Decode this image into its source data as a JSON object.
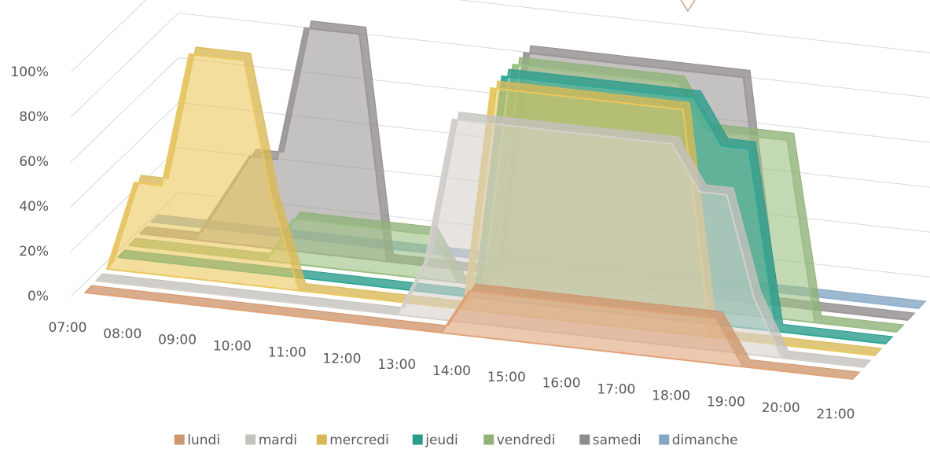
{
  "chart_data": {
    "type": "area3d",
    "categories": [
      "07:00",
      null,
      "08:00",
      null,
      "09:00",
      null,
      "10:00",
      null,
      "11:00",
      null,
      "12:00",
      null,
      "13:00",
      null,
      "14:00",
      null,
      "15:00",
      null,
      "16:00",
      null,
      "17:00",
      null,
      "18:00",
      null,
      "19:00",
      null,
      "20:00",
      null,
      "21:00"
    ],
    "ylim": [
      0,
      100
    ],
    "yticks": [
      {
        "value": 0,
        "label": "0%"
      },
      {
        "value": 20,
        "label": "20%"
      },
      {
        "value": 40,
        "label": "40%"
      },
      {
        "value": 60,
        "label": "60%"
      },
      {
        "value": 80,
        "label": "80%"
      },
      {
        "value": 100,
        "label": "100%"
      }
    ],
    "grid": true,
    "legend": "bottom",
    "series": [
      {
        "name": "lundi",
        "color": "#f4b183",
        "values": [
          0,
          0,
          0,
          0,
          0,
          0,
          0,
          0,
          0,
          0,
          0,
          0,
          0,
          0,
          20,
          20,
          20,
          20,
          20,
          20,
          20,
          20,
          20,
          20,
          0,
          0,
          0,
          0,
          0
        ]
      },
      {
        "name": "mardi",
        "color": "#e7e3df",
        "values": [
          0,
          0,
          0,
          0,
          0,
          0,
          0,
          0,
          0,
          0,
          0,
          0,
          25,
          90,
          90,
          90,
          90,
          90,
          90,
          90,
          90,
          90,
          70,
          70,
          25,
          0,
          0,
          0,
          0
        ]
      },
      {
        "name": "mercredi",
        "color": "#ffd966",
        "values": [
          0,
          40,
          40,
          100,
          100,
          100,
          40,
          0,
          0,
          0,
          0,
          0,
          0,
          0,
          100,
          100,
          100,
          100,
          100,
          100,
          100,
          100,
          0,
          0,
          0,
          0,
          0,
          0,
          0
        ]
      },
      {
        "name": "jeudi",
        "color": "#33b8a5",
        "values": [
          0,
          0,
          0,
          0,
          0,
          0,
          0,
          0,
          0,
          0,
          0,
          0,
          0,
          0,
          100,
          100,
          100,
          100,
          100,
          100,
          100,
          100,
          80,
          80,
          0,
          0,
          0,
          0,
          0
        ]
      },
      {
        "name": "vendredi",
        "color": "#a9d18e",
        "values": [
          0,
          0,
          0,
          0,
          0,
          0,
          20,
          20,
          20,
          20,
          20,
          20,
          0,
          0,
          100,
          100,
          100,
          100,
          100,
          100,
          100,
          80,
          80,
          80,
          80,
          0,
          0,
          0,
          0
        ]
      },
      {
        "name": "samedi",
        "color": "#aaa5a5",
        "values": [
          0,
          0,
          0,
          20,
          40,
          40,
          100,
          100,
          100,
          0,
          0,
          0,
          0,
          0,
          100,
          100,
          100,
          100,
          100,
          100,
          100,
          100,
          100,
          0,
          0,
          0,
          0,
          0,
          0
        ]
      },
      {
        "name": "dimanche",
        "color": "#9dc3e6",
        "values": [
          0,
          0,
          0,
          0,
          0,
          0,
          0,
          0,
          0,
          0,
          0,
          0,
          0,
          0,
          0,
          0,
          0,
          0,
          0,
          0,
          0,
          0,
          0,
          0,
          0,
          0,
          0,
          0,
          0
        ]
      }
    ]
  }
}
